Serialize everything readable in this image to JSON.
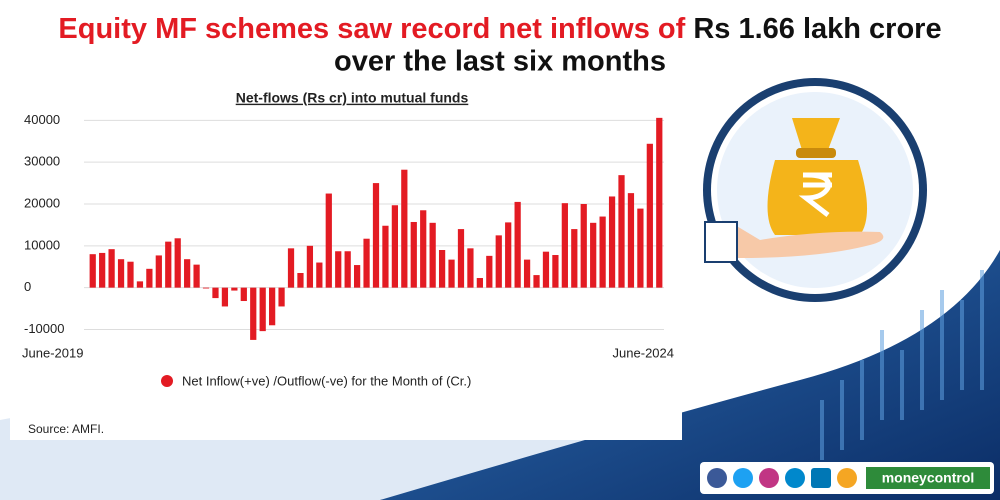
{
  "header": {
    "title_red": "Equity MF schemes saw record net inflows of",
    "title_black_1": "Rs 1.66 lakh crore",
    "title_black_2": "over the last six months"
  },
  "chart_data": {
    "type": "bar",
    "title": "Net-flows (Rs cr) into mutual funds",
    "categories": [
      "June-2019",
      null,
      null,
      null,
      null,
      null,
      null,
      null,
      null,
      null,
      null,
      null,
      null,
      null,
      null,
      null,
      null,
      null,
      null,
      null,
      null,
      null,
      null,
      null,
      null,
      null,
      null,
      null,
      null,
      null,
      null,
      null,
      null,
      null,
      null,
      null,
      null,
      null,
      null,
      null,
      null,
      null,
      null,
      null,
      null,
      null,
      null,
      null,
      null,
      null,
      null,
      null,
      null,
      null,
      null,
      null,
      null,
      null,
      null,
      null,
      "June-2024"
    ],
    "series": [
      {
        "name": "Net Inflow(+ve) /Outflow(-ve) for the Month of (Cr.)",
        "color": "#e31b23",
        "values": [
          8000,
          8300,
          9200,
          6800,
          6200,
          1500,
          4500,
          7700,
          11000,
          11800,
          6800,
          5500,
          -200,
          -2500,
          -4500,
          -700,
          -3200,
          -12500,
          -10400,
          -9000,
          -4500,
          9400,
          3500,
          10000,
          6000,
          22500,
          8700,
          8700,
          5400,
          11700,
          25000,
          14800,
          19700,
          28200,
          15700,
          18500,
          15500,
          9000,
          6700,
          14000,
          9400,
          2300,
          7600,
          12500,
          15600,
          20500,
          6700,
          3000,
          8600,
          7800,
          20200,
          14000,
          20000,
          15500,
          17000,
          21800,
          26900,
          22600,
          18900,
          34400,
          40600
        ]
      }
    ],
    "ylim": [
      -13000,
      42000
    ],
    "yticks": [
      -10000,
      0,
      10000,
      20000,
      30000,
      40000
    ],
    "grid": true,
    "source": "Source: AMFI."
  },
  "footer": {
    "brand": "moneycontrol"
  }
}
